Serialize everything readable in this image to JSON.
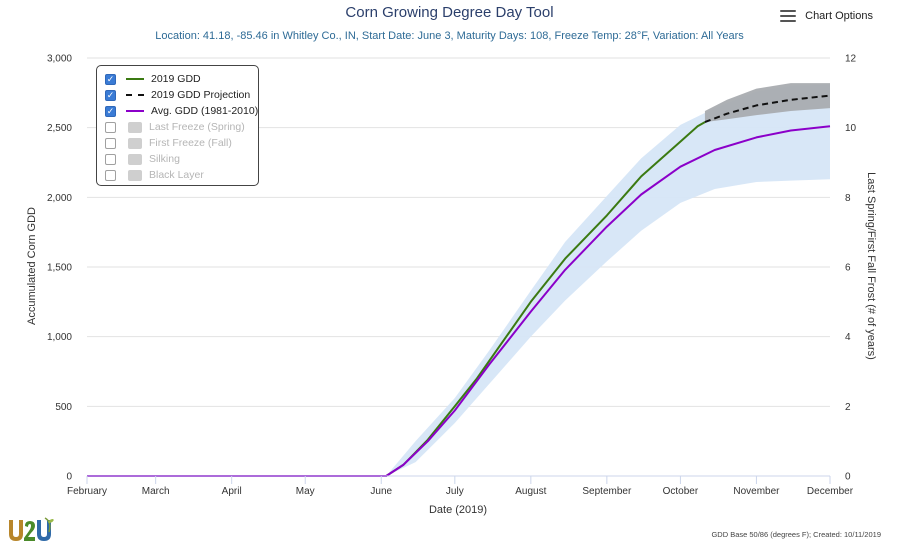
{
  "title": "Corn Growing Degree Day Tool",
  "subtitle": "Location: 41.18, -85.46 in Whitley Co., IN, Start Date: June 3, Maturity Days: 108, Freeze Temp: 28°F, Variation: All Years",
  "chart_options": {
    "label": "Chart Options",
    "icon": "menu-icon"
  },
  "legend": [
    {
      "label": "2019 GDD",
      "checked": true,
      "style": "line",
      "color": "#3b7a12"
    },
    {
      "label": "2019 GDD Projection",
      "checked": true,
      "style": "dash",
      "color": "#111111"
    },
    {
      "label": "Avg. GDD (1981-2010)",
      "checked": true,
      "style": "line",
      "color": "#8b00c9"
    },
    {
      "label": "Last Freeze (Spring)",
      "checked": false,
      "style": "box",
      "color": "#cfcfcf"
    },
    {
      "label": "First Freeze (Fall)",
      "checked": false,
      "style": "box",
      "color": "#cfcfcf"
    },
    {
      "label": "Silking",
      "checked": false,
      "style": "box",
      "color": "#cfcfcf"
    },
    {
      "label": "Black Layer",
      "checked": false,
      "style": "box",
      "color": "#cfcfcf"
    }
  ],
  "footer": "GDD Base 50/86 (degrees F); Created: 10/11/2019",
  "logo": {
    "text": "U2U"
  },
  "chart_data": {
    "type": "line",
    "title": "Corn Growing Degree Day Tool",
    "xlabel": "Date (2019)",
    "ylabel": "Accumulated Corn GDD",
    "y2label": "Last Spring/First Fall Frost (# of years)",
    "x_ticks": [
      "February",
      "March",
      "April",
      "May",
      "June",
      "July",
      "August",
      "September",
      "October",
      "November",
      "December"
    ],
    "x_tick_dates": [
      "2019-02-01",
      "2019-03-01",
      "2019-04-01",
      "2019-05-01",
      "2019-06-01",
      "2019-07-01",
      "2019-08-01",
      "2019-09-01",
      "2019-10-01",
      "2019-11-01",
      "2019-12-01"
    ],
    "xlim": [
      "2019-02-01",
      "2019-12-01"
    ],
    "ylim": [
      0,
      3000
    ],
    "y_ticks": [
      "0",
      "500",
      "1,000",
      "1,500",
      "2,000",
      "2,500",
      "3,000"
    ],
    "y_tick_values": [
      0,
      500,
      1000,
      1500,
      2000,
      2500,
      3000
    ],
    "y2lim": [
      0,
      12
    ],
    "y2_ticks": [
      "0",
      "2",
      "4",
      "6",
      "8",
      "10",
      "12"
    ],
    "y2_tick_values": [
      0,
      2,
      4,
      6,
      8,
      10,
      12
    ],
    "grid": true,
    "series": [
      {
        "name": "2019 GDD",
        "style": "solid",
        "color": "#3b7a12",
        "points": [
          [
            "2019-02-01",
            0
          ],
          [
            "2019-06-03",
            0
          ],
          [
            "2019-06-10",
            80
          ],
          [
            "2019-06-20",
            260
          ],
          [
            "2019-07-01",
            500
          ],
          [
            "2019-07-10",
            700
          ],
          [
            "2019-07-20",
            950
          ],
          [
            "2019-08-01",
            1250
          ],
          [
            "2019-08-15",
            1560
          ],
          [
            "2019-09-01",
            1870
          ],
          [
            "2019-09-15",
            2150
          ],
          [
            "2019-10-01",
            2400
          ],
          [
            "2019-10-08",
            2510
          ],
          [
            "2019-10-11",
            2540
          ]
        ]
      },
      {
        "name": "2019 GDD Projection",
        "style": "dashed",
        "color": "#111111",
        "points": [
          [
            "2019-10-11",
            2540
          ],
          [
            "2019-10-20",
            2600
          ],
          [
            "2019-11-01",
            2660
          ],
          [
            "2019-11-15",
            2700
          ],
          [
            "2019-12-01",
            2730
          ]
        ]
      },
      {
        "name": "Avg. GDD (1981-2010)",
        "style": "solid",
        "color": "#8b00c9",
        "points": [
          [
            "2019-02-01",
            0
          ],
          [
            "2019-06-03",
            0
          ],
          [
            "2019-06-10",
            80
          ],
          [
            "2019-06-20",
            250
          ],
          [
            "2019-07-01",
            470
          ],
          [
            "2019-07-15",
            800
          ],
          [
            "2019-08-01",
            1180
          ],
          [
            "2019-08-15",
            1480
          ],
          [
            "2019-09-01",
            1790
          ],
          [
            "2019-09-15",
            2020
          ],
          [
            "2019-10-01",
            2220
          ],
          [
            "2019-10-15",
            2340
          ],
          [
            "2019-11-01",
            2430
          ],
          [
            "2019-11-15",
            2480
          ],
          [
            "2019-12-01",
            2510
          ]
        ]
      }
    ],
    "bands": [
      {
        "color": "#d6e6f7",
        "upper": [
          [
            "2019-06-03",
            0
          ],
          [
            "2019-06-15",
            250
          ],
          [
            "2019-07-01",
            560
          ],
          [
            "2019-07-15",
            900
          ],
          [
            "2019-08-01",
            1330
          ],
          [
            "2019-08-15",
            1680
          ],
          [
            "2019-09-01",
            2010
          ],
          [
            "2019-09-15",
            2280
          ],
          [
            "2019-10-01",
            2520
          ],
          [
            "2019-10-15",
            2640
          ],
          [
            "2019-11-01",
            2760
          ],
          [
            "2019-11-15",
            2800
          ],
          [
            "2019-12-01",
            2810
          ]
        ],
        "lower": [
          [
            "2019-06-03",
            0
          ],
          [
            "2019-06-15",
            100
          ],
          [
            "2019-07-01",
            380
          ],
          [
            "2019-07-15",
            660
          ],
          [
            "2019-08-01",
            1000
          ],
          [
            "2019-08-15",
            1260
          ],
          [
            "2019-09-01",
            1540
          ],
          [
            "2019-09-15",
            1760
          ],
          [
            "2019-10-01",
            1960
          ],
          [
            "2019-10-15",
            2060
          ],
          [
            "2019-11-01",
            2110
          ],
          [
            "2019-11-15",
            2120
          ],
          [
            "2019-12-01",
            2130
          ]
        ]
      },
      {
        "color": "#a9acb0",
        "upper": [
          [
            "2019-10-11",
            2620
          ],
          [
            "2019-10-20",
            2700
          ],
          [
            "2019-11-01",
            2780
          ],
          [
            "2019-11-15",
            2820
          ],
          [
            "2019-12-01",
            2820
          ]
        ],
        "lower": [
          [
            "2019-10-11",
            2540
          ],
          [
            "2019-10-20",
            2560
          ],
          [
            "2019-11-01",
            2590
          ],
          [
            "2019-11-15",
            2620
          ],
          [
            "2019-12-01",
            2640
          ]
        ]
      }
    ]
  }
}
